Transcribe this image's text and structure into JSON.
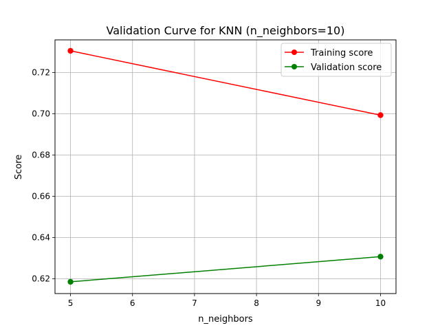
{
  "chart_data": {
    "type": "line",
    "title": "Validation Curve for KNN (n_neighbors=10)",
    "xlabel": "n_neighbors",
    "ylabel": "Score",
    "xlim": [
      4.75,
      10.25
    ],
    "ylim": [
      0.6128,
      0.7358
    ],
    "xticks": [
      5,
      6,
      7,
      8,
      9,
      10
    ],
    "yticks": [
      0.62,
      0.64,
      0.66,
      0.68,
      0.7,
      0.72
    ],
    "ytick_labels": [
      "0.62",
      "0.64",
      "0.66",
      "0.68",
      "0.70",
      "0.72"
    ],
    "grid": true,
    "legend_position": "top-right",
    "series": [
      {
        "name": "Training score",
        "color": "#ff0000",
        "marker": "circle",
        "x": [
          5,
          10
        ],
        "y": [
          0.7305,
          0.6993
        ]
      },
      {
        "name": "Validation score",
        "color": "#008000",
        "marker": "circle",
        "x": [
          5,
          10
        ],
        "y": [
          0.6185,
          0.6307
        ]
      }
    ]
  }
}
